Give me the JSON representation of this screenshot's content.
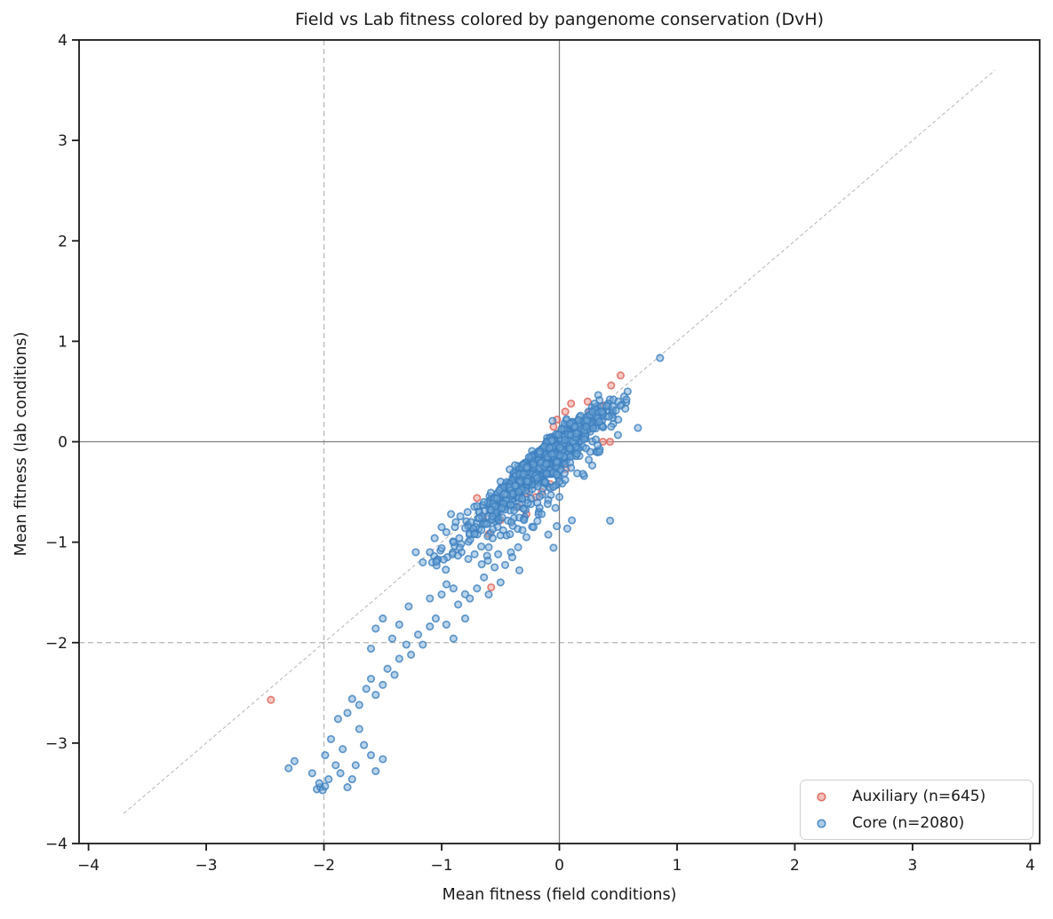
{
  "chart_data": {
    "type": "scatter",
    "title": "Field vs Lab fitness colored by pangenome conservation (DvH)",
    "xlabel": "Mean fitness (field conditions)",
    "ylabel": "Mean fitness (lab conditions)",
    "xlim": [
      -4.08,
      4.08
    ],
    "ylim": [
      -4.0,
      4.0
    ],
    "xticks": [
      -4,
      -3,
      -2,
      -1,
      0,
      1,
      2,
      3,
      4
    ],
    "yticks": [
      -4,
      -3,
      -2,
      -1,
      0,
      1,
      2,
      3,
      4
    ],
    "grid": false,
    "legend_position": "lower right",
    "reference_lines": {
      "zero_x": 0,
      "zero_y": 0,
      "threshold_x": -2,
      "threshold_y": -2,
      "identity_diagonal": [
        [
          -3.7,
          -3.7
        ],
        [
          3.7,
          3.7
        ]
      ],
      "zero_color": "#808080",
      "threshold_color": "#b5b5b5",
      "diagonal_color": "#a8a8a8"
    },
    "marker": {
      "radius": 3.7,
      "stroke_width": 1.7,
      "fill_opacity": 0.5,
      "stroke_opacity": 0.8
    },
    "seed": 20,
    "series": [
      {
        "name": "Auxiliary (n=645)",
        "n": 645,
        "fill": "#ee958d",
        "stroke": "#dd6257",
        "points": [
          [
            0.52,
            0.66
          ],
          [
            0.44,
            0.56
          ],
          [
            0.38,
            0.36
          ],
          [
            0.24,
            0.4
          ],
          [
            0.1,
            0.38
          ],
          [
            0.05,
            0.3
          ],
          [
            -0.02,
            0.22
          ],
          [
            -0.05,
            0.15
          ],
          [
            0.37,
            0.0
          ],
          [
            0.43,
            0.0
          ],
          [
            0.3,
            0.22
          ],
          [
            0.26,
            0.3
          ],
          [
            0.18,
            0.12
          ],
          [
            0.02,
            -0.18
          ],
          [
            -0.12,
            -0.28
          ],
          [
            -0.08,
            -0.42
          ],
          [
            -0.15,
            -0.5
          ],
          [
            -0.2,
            -0.55
          ],
          [
            -0.22,
            -0.35
          ],
          [
            -0.32,
            -0.4
          ],
          [
            -0.4,
            -0.48
          ],
          [
            -0.28,
            -0.72
          ],
          [
            -0.35,
            -0.65
          ],
          [
            -0.45,
            -0.62
          ],
          [
            -0.5,
            -0.78
          ],
          [
            -0.58,
            -1.45
          ],
          [
            -0.6,
            -0.92
          ],
          [
            -0.65,
            -0.75
          ],
          [
            -0.7,
            -0.56
          ],
          [
            -2.45,
            -2.57
          ]
        ],
        "clusters": [
          {
            "n": 45,
            "cx": -0.08,
            "cy": -0.1,
            "sigma_along": 0.18,
            "sigma_perp": 0.055,
            "skew_above": 0.8
          },
          {
            "n": 18,
            "cx": -0.28,
            "cy": -0.36,
            "sigma_along": 0.3,
            "sigma_perp": 0.12,
            "skew_above": 0.45
          }
        ]
      },
      {
        "name": "Core (n=2080)",
        "n": 2080,
        "fill": "#74a9d8",
        "stroke": "#3d7fbf",
        "points": [
          [
            -2.3,
            -3.25
          ],
          [
            -2.25,
            -3.18
          ],
          [
            -2.1,
            -3.3
          ],
          [
            -2.06,
            -3.46
          ],
          [
            -2.03,
            -3.44
          ],
          [
            -2.01,
            -3.47
          ],
          [
            -1.99,
            -3.43
          ],
          [
            -2.04,
            -3.4
          ],
          [
            -1.96,
            -3.36
          ],
          [
            -1.9,
            -3.22
          ],
          [
            -1.86,
            -3.3
          ],
          [
            -1.8,
            -3.44
          ],
          [
            -1.76,
            -3.36
          ],
          [
            -1.73,
            -3.22
          ],
          [
            -1.84,
            -3.06
          ],
          [
            -1.94,
            -2.96
          ],
          [
            -1.99,
            -3.12
          ],
          [
            -1.66,
            -3.02
          ],
          [
            -1.6,
            -3.12
          ],
          [
            -1.56,
            -3.28
          ],
          [
            -1.5,
            -3.16
          ],
          [
            -1.7,
            -2.86
          ],
          [
            -1.88,
            -2.76
          ],
          [
            -1.8,
            -2.7
          ],
          [
            -1.76,
            -2.56
          ],
          [
            -1.7,
            -2.62
          ],
          [
            -1.64,
            -2.46
          ],
          [
            -1.6,
            -2.36
          ],
          [
            -1.56,
            -2.52
          ],
          [
            -1.5,
            -2.42
          ],
          [
            -1.46,
            -2.26
          ],
          [
            -1.4,
            -2.32
          ],
          [
            -1.36,
            -2.16
          ],
          [
            -1.42,
            -1.96
          ],
          [
            -1.3,
            -2.02
          ],
          [
            -1.26,
            -2.12
          ],
          [
            -1.2,
            -1.92
          ],
          [
            -1.16,
            -2.02
          ],
          [
            -1.56,
            -1.86
          ],
          [
            -1.5,
            -1.76
          ],
          [
            -1.36,
            -1.82
          ],
          [
            -1.28,
            -1.64
          ],
          [
            -1.6,
            -2.06
          ],
          [
            -1.1,
            -1.84
          ],
          [
            -1.05,
            -1.76
          ],
          [
            -0.96,
            -1.82
          ],
          [
            -0.9,
            -1.96
          ],
          [
            -0.86,
            -1.62
          ],
          [
            -0.8,
            -1.76
          ],
          [
            -0.76,
            -1.56
          ],
          [
            -0.7,
            -1.46
          ],
          [
            -0.9,
            -1.46
          ],
          [
            -1.0,
            -1.52
          ],
          [
            -1.1,
            -1.56
          ],
          [
            -0.64,
            -1.35
          ],
          [
            -0.6,
            -1.52
          ],
          [
            -0.55,
            -1.25
          ],
          [
            -0.5,
            -1.4
          ],
          [
            -0.66,
            -1.22
          ],
          [
            -0.72,
            -1.12
          ],
          [
            -0.6,
            -1.05
          ],
          [
            -0.52,
            -1.12
          ],
          [
            -0.4,
            -1.15
          ],
          [
            -0.34,
            -1.28
          ],
          [
            -1.22,
            -1.1
          ],
          [
            -1.16,
            -1.2
          ],
          [
            -1.1,
            -1.1
          ],
          [
            -1.06,
            -0.96
          ],
          [
            -1.0,
            -1.06
          ],
          [
            -0.96,
            -0.9
          ],
          [
            -0.9,
            -1.0
          ],
          [
            -0.88,
            -0.8
          ],
          [
            -0.85,
            -0.96
          ],
          [
            -0.8,
            -0.86
          ],
          [
            -0.78,
            -0.7
          ],
          [
            -0.75,
            -0.8
          ],
          [
            -0.72,
            -0.92
          ],
          [
            -0.7,
            -0.64
          ],
          [
            -0.68,
            -0.76
          ],
          [
            -0.64,
            -0.6
          ],
          [
            -0.62,
            -0.82
          ],
          [
            -0.58,
            -0.68
          ],
          [
            -1.0,
            -0.85
          ],
          [
            -0.92,
            -0.72
          ],
          [
            0.15,
            -0.12
          ],
          [
            0.25,
            -0.18
          ],
          [
            0.34,
            -0.1
          ],
          [
            0.1,
            -0.26
          ],
          [
            0.2,
            -0.32
          ],
          [
            0.05,
            -0.38
          ],
          [
            -0.05,
            -0.45
          ],
          [
            0.0,
            -0.55
          ],
          [
            -0.1,
            -0.62
          ],
          [
            -0.15,
            -0.72
          ],
          [
            -0.22,
            -0.85
          ],
          [
            -0.28,
            -0.95
          ],
          [
            -0.35,
            -1.05
          ],
          [
            -0.42,
            -0.92
          ],
          [
            -0.3,
            -0.78
          ],
          [
            0.36,
            0.3
          ],
          [
            0.4,
            0.36
          ],
          [
            0.46,
            0.42
          ],
          [
            0.5,
            0.4
          ],
          [
            0.55,
            0.45
          ],
          [
            0.58,
            0.5
          ],
          [
            0.42,
            0.25
          ],
          [
            0.48,
            0.31
          ],
          [
            0.52,
            0.36
          ],
          [
            0.3,
            0.38
          ],
          [
            0.28,
            0.3
          ],
          [
            0.57,
            0.42
          ],
          [
            0.34,
            0.2
          ],
          [
            0.44,
            0.15
          ],
          [
            0.5,
            0.22
          ],
          [
            0.56,
            0.33
          ]
        ],
        "clusters": [
          {
            "n": 700,
            "cx": -0.1,
            "cy": -0.13,
            "sigma_along": 0.16,
            "sigma_perp": 0.045,
            "skew_above": 0.85
          },
          {
            "n": 450,
            "cx": -0.12,
            "cy": -0.16,
            "sigma_along": 0.3,
            "sigma_perp": 0.08,
            "skew_above": 0.6
          },
          {
            "n": 230,
            "cx": -0.2,
            "cy": -0.28,
            "sigma_along": 0.45,
            "sigma_perp": 0.13,
            "skew_above": 0.4
          },
          {
            "n": 110,
            "cx": -0.5,
            "cy": -0.72,
            "sigma_along": 0.42,
            "sigma_perp": 0.22,
            "skew_above": 0.25
          },
          {
            "n": 80,
            "cx": 0.16,
            "cy": 0.14,
            "sigma_along": 0.2,
            "sigma_perp": 0.07,
            "skew_above": 0.9
          }
        ]
      }
    ]
  },
  "legend": {
    "items": [
      {
        "label": "Auxiliary (n=645)"
      },
      {
        "label": "Core (n=2080)"
      }
    ]
  }
}
